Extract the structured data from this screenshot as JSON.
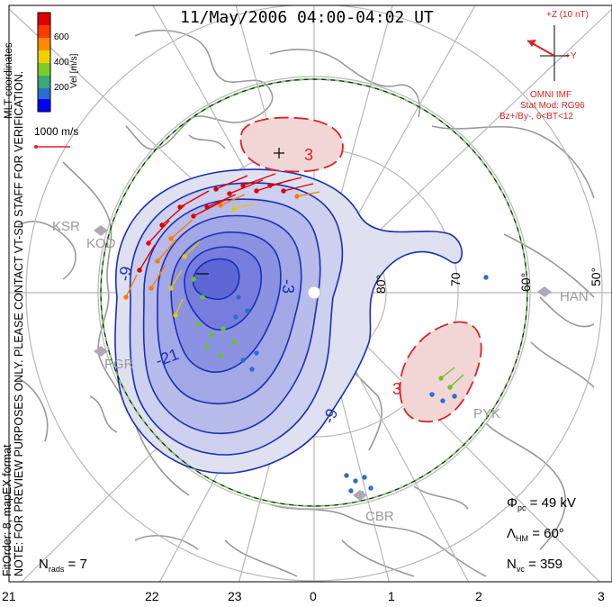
{
  "title": "11/May/2006 04:00-04:02 UT",
  "side_note": "NOTE: FOR PREVIEW PURPOSES ONLY. PLEASE CONTACT VT-SD STAFF FOR VERIFICATION.",
  "fit_note": "FitOrder: 8, mapEX format",
  "coord_label": "MLT coordinates",
  "color_scale": {
    "label": "Vel [m/s]",
    "ticks": [
      "600",
      "400",
      "200"
    ],
    "colors": [
      "#0000ff",
      "#2a6ecf",
      "#3aa87a",
      "#7ccc2a",
      "#f0d000",
      "#ff8a00",
      "#ff3a00",
      "#e00000"
    ]
  },
  "vector_scale_label": "1000 m/s",
  "imf": {
    "z_label": "+Z (10 nT)",
    "y_label": "+Y",
    "source": "OMNI IMF",
    "stat_mod": "Stat Mod: RG96",
    "condition": "Bz+/By-, 6<BT<12",
    "line_color": "#d22"
  },
  "stats": {
    "phi_label": "Φ",
    "phi_sub": "pc",
    "phi_value": " = 49 kV",
    "lambda_label": "Λ",
    "lambda_sub": "HM",
    "lambda_value": " = 60°",
    "nrads_label": "N",
    "nrads_sub": "rads",
    "nrads_value": " = 7",
    "nvc_label": "N",
    "nvc_sub": "vc",
    "nvc_value": " = 359"
  },
  "mlt_ticks": [
    "21",
    "22",
    "23",
    "0",
    "1",
    "2",
    "3"
  ],
  "lat_labels": [
    "80°",
    "70",
    "60°",
    "50°"
  ],
  "stations": [
    "KSR",
    "KOD",
    "PGR",
    "HAN",
    "PYK",
    "CBR"
  ],
  "contour_labels": [
    "-9",
    "-21",
    "-9",
    "-3",
    "3",
    "3"
  ],
  "contour_colors": {
    "negative": "#1a2fb8",
    "positive": "#d22",
    "boundary": "#44aa33"
  }
}
